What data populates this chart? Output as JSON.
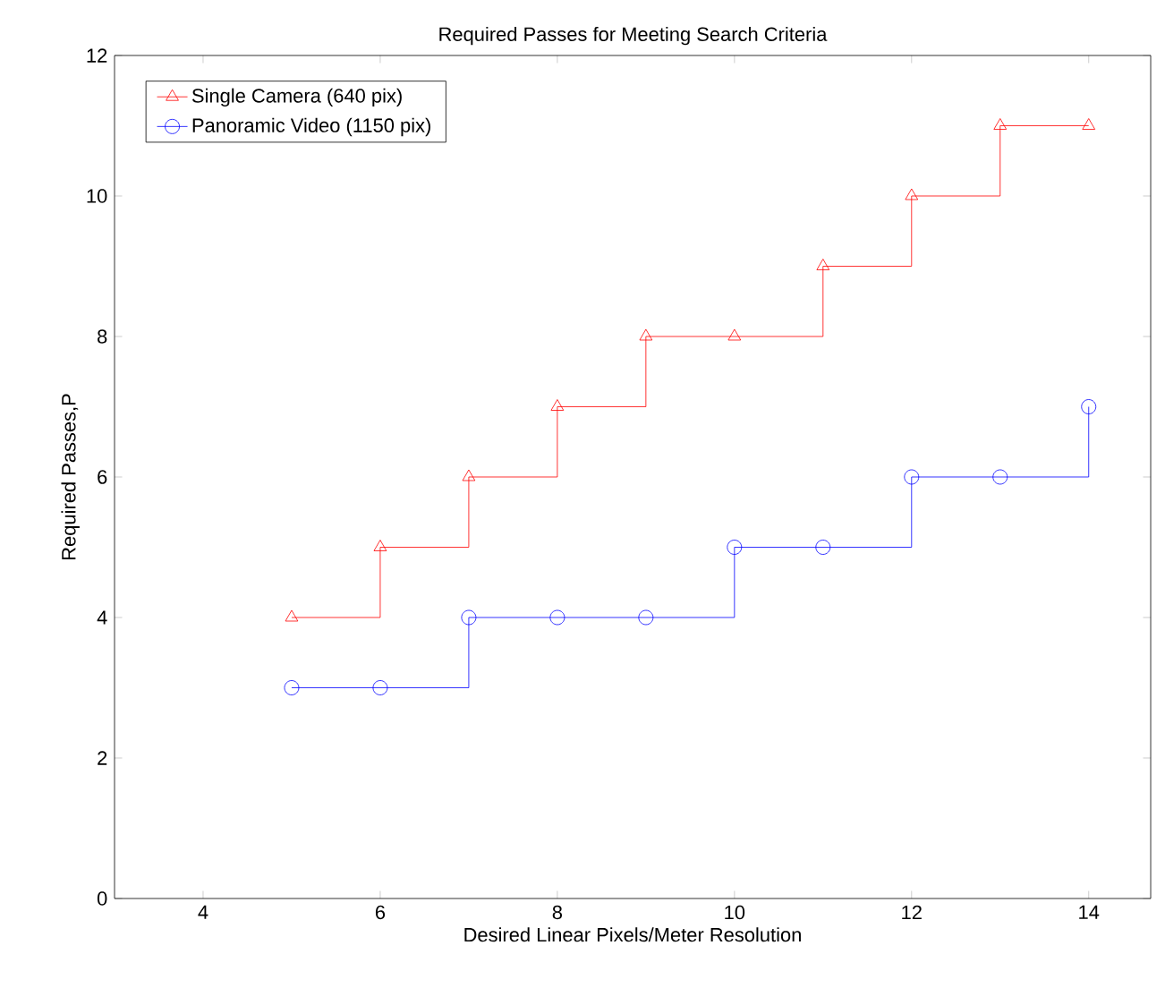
{
  "chart_data": {
    "type": "step",
    "title": "Required Passes for Meeting Search Criteria",
    "xlabel": "Desired Linear Pixels/Meter Resolution",
    "ylabel": "Required Passes,P",
    "x": [
      5,
      6,
      7,
      8,
      9,
      10,
      11,
      12,
      13,
      14
    ],
    "series": [
      {
        "name": "Single Camera (640 pix)",
        "color": "#ff0000",
        "marker": "triangle",
        "values": [
          4,
          5,
          6,
          7,
          8,
          8,
          9,
          10,
          11,
          11
        ]
      },
      {
        "name": "Panoramic Video (1150 pix)",
        "color": "#0000ff",
        "marker": "circle",
        "values": [
          3,
          3,
          4,
          4,
          4,
          5,
          5,
          6,
          6,
          7
        ]
      }
    ],
    "xlim": [
      3,
      14.7
    ],
    "ylim": [
      0,
      12
    ],
    "xticks": [
      4,
      6,
      8,
      10,
      12,
      14
    ],
    "yticks": [
      0,
      2,
      4,
      6,
      8,
      10,
      12
    ],
    "grid": false,
    "legend": "top left"
  }
}
